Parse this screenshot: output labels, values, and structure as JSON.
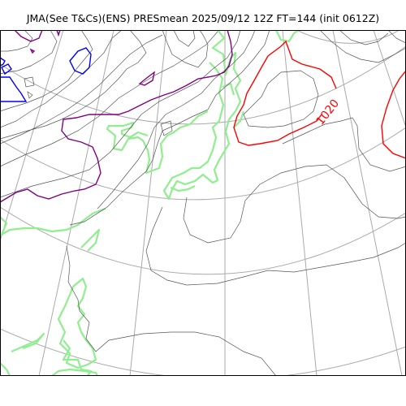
{
  "map": {
    "title": "JMA(See T&Cs)(ENS) PRESmean 2025/09/12 12Z FT=144 (init 0612Z)",
    "isobar_label": "1020",
    "colors": {
      "background": "#ffffff",
      "isobar": "#555555",
      "isobar_1020": "#ff0000",
      "contour_purple": "#800080",
      "contour_blue": "#0000ff",
      "coastline": "#90ee90",
      "graticule": "#aaaaaa",
      "frame": "#000000"
    }
  }
}
